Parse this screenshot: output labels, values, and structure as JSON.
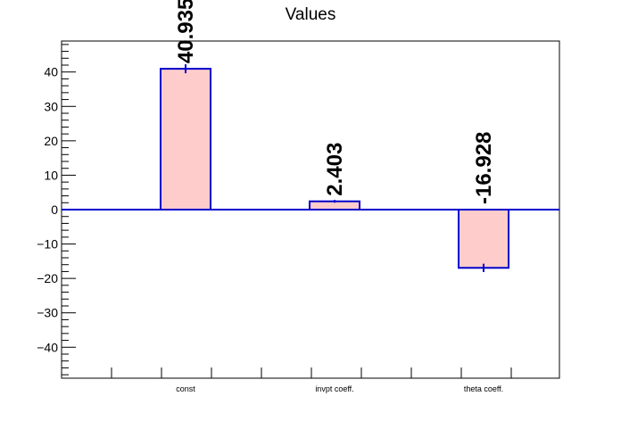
{
  "chart_data": {
    "type": "bar",
    "title": "Values",
    "xlabel": "",
    "ylabel": "",
    "categories": [
      "const",
      "invpt coeff.",
      "theta coeff."
    ],
    "values": [
      40.935,
      2.403,
      -16.928
    ],
    "errors": [
      1.3,
      0.4,
      1.2
    ],
    "value_labels": [
      "40.935",
      "2.403",
      "-16.928"
    ],
    "ylim": [
      -49,
      49
    ],
    "yticks": [
      -40,
      -30,
      -20,
      -10,
      0,
      10,
      20,
      30,
      40
    ],
    "ytick_labels": [
      "−40",
      "−30",
      "−20",
      "−10",
      "0",
      "10",
      "20",
      "30",
      "40"
    ],
    "grid": false,
    "legend": "none",
    "colors": {
      "bar_fill": "#ffcccc",
      "bar_edge": "#0000cc",
      "zero_line": "#0000cc",
      "axis": "#000000"
    }
  }
}
